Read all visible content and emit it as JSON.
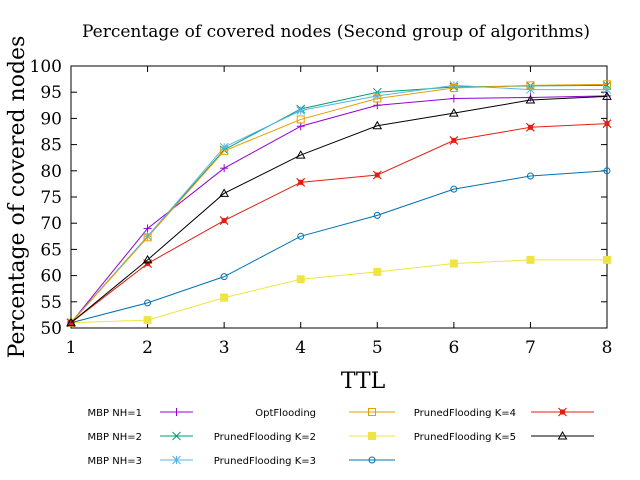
{
  "chart_data": {
    "type": "line",
    "title": "Percentage of covered nodes (Second group of algorithms)",
    "xlabel": "TTL",
    "ylabel": "Percentage of covered nodes",
    "x": [
      1,
      2,
      3,
      4,
      5,
      6,
      7,
      8
    ],
    "xlim": [
      1,
      8
    ],
    "ylim": [
      50,
      100
    ],
    "xticks": [
      "1",
      "2",
      "3",
      "4",
      "5",
      "6",
      "7",
      "8"
    ],
    "yticks": [
      "50",
      "55",
      "60",
      "65",
      "70",
      "75",
      "80",
      "85",
      "90",
      "95",
      "100"
    ],
    "grid": false,
    "legend_position": "bottom",
    "series": [
      {
        "name": "MBP NH=1",
        "color": "#9400d3",
        "marker": "plus",
        "values": [
          51.0,
          69.0,
          80.5,
          88.5,
          92.5,
          93.8,
          94.0,
          94.3
        ]
      },
      {
        "name": "MBP NH=2",
        "color": "#009e73",
        "marker": "cross",
        "values": [
          51.0,
          67.5,
          84.0,
          91.8,
          95.0,
          96.0,
          96.2,
          96.3
        ]
      },
      {
        "name": "MBP NH=3",
        "color": "#56b4e9",
        "marker": "star",
        "values": [
          51.0,
          67.5,
          84.5,
          91.5,
          94.3,
          96.3,
          95.5,
          95.5
        ]
      },
      {
        "name": "OptFlooding",
        "color": "#e69f00",
        "marker": "square-open",
        "values": [
          51.0,
          67.3,
          83.8,
          89.8,
          93.8,
          95.8,
          96.3,
          96.5
        ]
      },
      {
        "name": "PrunedFlooding K=2",
        "color": "#f0e442",
        "marker": "square-filled",
        "values": [
          51.0,
          51.5,
          55.8,
          59.3,
          60.7,
          62.3,
          63.0,
          63.0
        ]
      },
      {
        "name": "PrunedFlooding K=3",
        "color": "#0072b2",
        "marker": "circle-open",
        "values": [
          51.0,
          54.8,
          59.8,
          67.5,
          71.5,
          76.5,
          79.0,
          80.0
        ]
      },
      {
        "name": "PrunedFlooding K=4",
        "color": "#e51e10",
        "marker": "asterisk-filled",
        "values": [
          51.0,
          62.3,
          70.5,
          77.8,
          79.2,
          85.8,
          88.3,
          89.0
        ]
      },
      {
        "name": "PrunedFlooding K=5",
        "color": "#000000",
        "marker": "triangle-open",
        "values": [
          51.0,
          63.0,
          75.7,
          83.0,
          88.6,
          91.0,
          93.5,
          94.2
        ]
      }
    ]
  }
}
